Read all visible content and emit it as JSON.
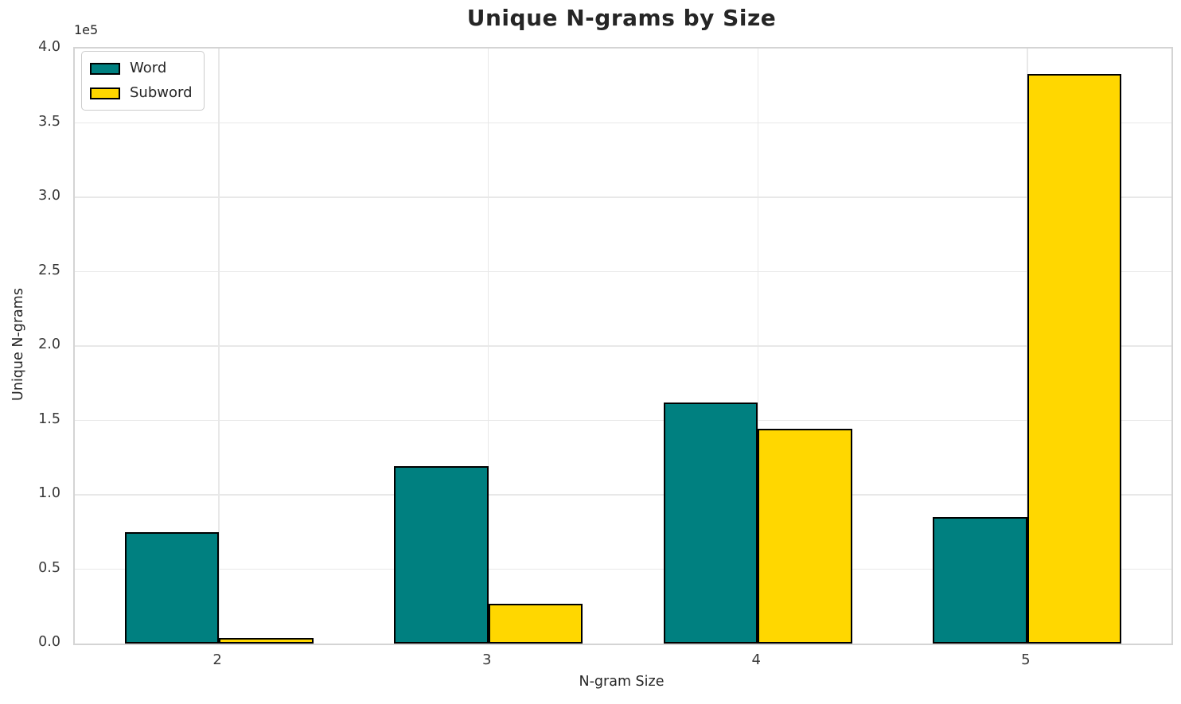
{
  "chart_data": {
    "type": "bar",
    "title": "Unique N-grams by Size",
    "xlabel": "N-gram Size",
    "ylabel": "Unique N-grams",
    "y_offset_text": "1e5",
    "categories": [
      "2",
      "3",
      "4",
      "5"
    ],
    "series": [
      {
        "name": "Word",
        "color": "#008080",
        "values": [
          75000,
          119000,
          162000,
          85000
        ]
      },
      {
        "name": "Subword",
        "color": "#FFD700",
        "values": [
          4000,
          27000,
          144500,
          383000
        ]
      }
    ],
    "bar_edge_color": "#000000",
    "bar_width_fraction": 0.35,
    "ylim": [
      0,
      400000
    ],
    "ytick_values": [
      0,
      50000,
      100000,
      150000,
      200000,
      250000,
      300000,
      350000,
      400000
    ],
    "ytick_labels": [
      "0.0",
      "0.5",
      "1.0",
      "1.5",
      "2.0",
      "2.5",
      "3.0",
      "3.5",
      "4.0"
    ],
    "grid": true,
    "grid_color": "#e8e8e8",
    "spine_color": "#d4d4d4",
    "text_color": "#262626",
    "background_color": "#ffffff",
    "legend_position": "upper left"
  }
}
